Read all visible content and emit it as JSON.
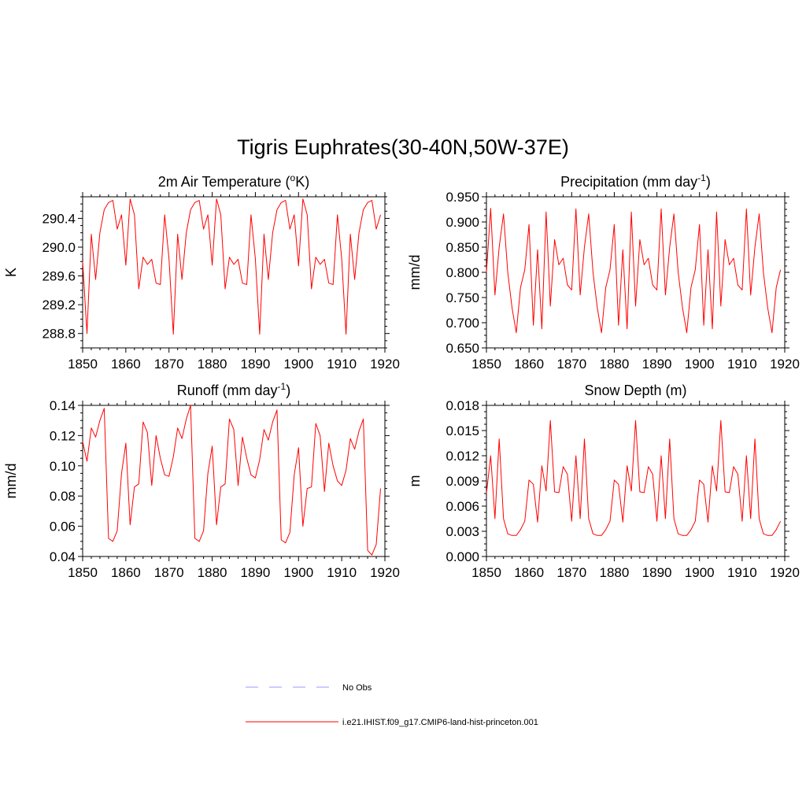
{
  "figure": {
    "title": "Tigris Euphrates(30-40N,50W-37E)"
  },
  "legend": {
    "items": [
      {
        "label": "No Obs",
        "color": "#9999ff",
        "style": "dashed"
      },
      {
        "label": "i.e21.IHIST.f09_g17.CMIP6-land-hist-princeton.001",
        "color": "#ff0000",
        "style": "solid"
      }
    ]
  },
  "chart_data": [
    {
      "id": "temp",
      "type": "line",
      "title": "2m Air Temperature (",
      "title_sup": "o",
      "title_after": "K)",
      "ylabel": "K",
      "xlim": [
        1850,
        1920
      ],
      "ylim": [
        288.6,
        290.7
      ],
      "xticks": [
        1850,
        1860,
        1870,
        1880,
        1890,
        1900,
        1910,
        1920
      ],
      "yticks": [
        288.8,
        289.2,
        289.6,
        290.0,
        290.4
      ],
      "ytick_labels": [
        "288.8",
        "289.2",
        "289.6",
        "290.0",
        "290.4"
      ],
      "series": [
        {
          "color": "#ff0000",
          "x": [
            1850,
            1851,
            1852,
            1853,
            1854,
            1855,
            1856,
            1857,
            1858,
            1859,
            1860,
            1861,
            1862,
            1863,
            1864,
            1865,
            1866,
            1867,
            1868,
            1869,
            1870,
            1871,
            1872,
            1873,
            1874,
            1875,
            1876,
            1877,
            1878,
            1879,
            1880,
            1881,
            1882,
            1883,
            1884,
            1885,
            1886,
            1887,
            1888,
            1889,
            1890,
            1891,
            1892,
            1893,
            1894,
            1895,
            1896,
            1897,
            1898,
            1899,
            1900,
            1901,
            1902,
            1903,
            1904,
            1905,
            1906,
            1907,
            1908,
            1909,
            1910,
            1911,
            1912,
            1913,
            1914,
            1915,
            1916,
            1917,
            1918,
            1919
          ],
          "values": [
            289.8,
            288.8,
            290.18,
            289.55,
            290.2,
            290.52,
            290.62,
            290.65,
            290.25,
            290.45,
            289.75,
            290.67,
            290.45,
            289.42,
            289.86,
            289.76,
            289.83,
            289.5,
            289.48,
            290.45,
            289.84,
            288.79,
            290.18,
            289.55,
            290.2,
            290.52,
            290.62,
            290.65,
            290.25,
            290.45,
            289.75,
            290.67,
            290.45,
            289.42,
            289.86,
            289.76,
            289.83,
            289.5,
            289.48,
            290.45,
            289.84,
            288.79,
            290.18,
            289.55,
            290.2,
            290.52,
            290.62,
            290.65,
            290.25,
            290.45,
            289.74,
            290.67,
            290.45,
            289.42,
            289.86,
            289.76,
            289.83,
            289.5,
            289.48,
            290.45,
            289.84,
            288.79,
            290.18,
            289.55,
            290.2,
            290.52,
            290.62,
            290.65,
            290.25,
            290.45
          ]
        }
      ]
    },
    {
      "id": "precip",
      "type": "line",
      "title": "Precipitation (mm day",
      "title_sup": "-1",
      "title_after": ")",
      "ylabel": "mm/d",
      "xlim": [
        1850,
        1920
      ],
      "ylim": [
        0.65,
        0.95
      ],
      "xticks": [
        1850,
        1860,
        1870,
        1880,
        1890,
        1900,
        1910,
        1920
      ],
      "yticks": [
        0.65,
        0.7,
        0.75,
        0.8,
        0.85,
        0.9,
        0.95
      ],
      "ytick_labels": [
        "0.650",
        "0.700",
        "0.750",
        "0.800",
        "0.850",
        "0.900",
        "0.950"
      ],
      "series": [
        {
          "color": "#ff0000",
          "x": [
            1850,
            1851,
            1852,
            1853,
            1854,
            1855,
            1856,
            1857,
            1858,
            1859,
            1860,
            1861,
            1862,
            1863,
            1864,
            1865,
            1866,
            1867,
            1868,
            1869,
            1870,
            1871,
            1872,
            1873,
            1874,
            1875,
            1876,
            1877,
            1878,
            1879,
            1880,
            1881,
            1882,
            1883,
            1884,
            1885,
            1886,
            1887,
            1888,
            1889,
            1890,
            1891,
            1892,
            1893,
            1894,
            1895,
            1896,
            1897,
            1898,
            1899,
            1900,
            1901,
            1902,
            1903,
            1904,
            1905,
            1906,
            1907,
            1908,
            1909,
            1910,
            1911,
            1912,
            1913,
            1914,
            1915,
            1916,
            1917,
            1918,
            1919
          ],
          "values": [
            0.8,
            0.927,
            0.755,
            0.85,
            0.916,
            0.8,
            0.73,
            0.68,
            0.77,
            0.805,
            0.895,
            0.695,
            0.845,
            0.688,
            0.92,
            0.733,
            0.865,
            0.815,
            0.828,
            0.775,
            0.765,
            0.926,
            0.755,
            0.85,
            0.916,
            0.8,
            0.73,
            0.68,
            0.77,
            0.805,
            0.895,
            0.695,
            0.845,
            0.688,
            0.92,
            0.733,
            0.865,
            0.815,
            0.828,
            0.775,
            0.765,
            0.926,
            0.755,
            0.85,
            0.916,
            0.8,
            0.73,
            0.68,
            0.77,
            0.805,
            0.895,
            0.695,
            0.845,
            0.688,
            0.92,
            0.733,
            0.865,
            0.815,
            0.828,
            0.775,
            0.765,
            0.926,
            0.755,
            0.85,
            0.916,
            0.8,
            0.73,
            0.68,
            0.77,
            0.805
          ]
        }
      ]
    },
    {
      "id": "runoff",
      "type": "line",
      "title": "Runoff (mm day",
      "title_sup": "-1",
      "title_after": ")",
      "ylabel": "mm/d",
      "xlim": [
        1850,
        1920
      ],
      "ylim": [
        0.04,
        0.14
      ],
      "xticks": [
        1850,
        1860,
        1870,
        1880,
        1890,
        1900,
        1910,
        1920
      ],
      "yticks": [
        0.04,
        0.06,
        0.08,
        0.1,
        0.12,
        0.14
      ],
      "ytick_labels": [
        "0.04",
        "0.06",
        "0.08",
        "0.10",
        "0.12",
        "0.14"
      ],
      "series": [
        {
          "color": "#ff0000",
          "x": [
            1850,
            1851,
            1852,
            1853,
            1854,
            1855,
            1856,
            1857,
            1858,
            1859,
            1860,
            1861,
            1862,
            1863,
            1864,
            1865,
            1866,
            1867,
            1868,
            1869,
            1870,
            1871,
            1872,
            1873,
            1874,
            1875,
            1876,
            1877,
            1878,
            1879,
            1880,
            1881,
            1882,
            1883,
            1884,
            1885,
            1886,
            1887,
            1888,
            1889,
            1890,
            1891,
            1892,
            1893,
            1894,
            1895,
            1896,
            1897,
            1898,
            1899,
            1900,
            1901,
            1902,
            1903,
            1904,
            1905,
            1906,
            1907,
            1908,
            1909,
            1910,
            1911,
            1912,
            1913,
            1914,
            1915,
            1916,
            1917,
            1918,
            1919
          ],
          "values": [
            0.116,
            0.103,
            0.125,
            0.119,
            0.13,
            0.138,
            0.052,
            0.05,
            0.057,
            0.095,
            0.115,
            0.061,
            0.086,
            0.088,
            0.129,
            0.122,
            0.087,
            0.12,
            0.105,
            0.094,
            0.093,
            0.106,
            0.125,
            0.118,
            0.131,
            0.14,
            0.052,
            0.05,
            0.057,
            0.095,
            0.113,
            0.061,
            0.086,
            0.088,
            0.131,
            0.124,
            0.087,
            0.119,
            0.105,
            0.094,
            0.092,
            0.104,
            0.124,
            0.117,
            0.129,
            0.137,
            0.051,
            0.049,
            0.056,
            0.094,
            0.112,
            0.06,
            0.085,
            0.086,
            0.128,
            0.12,
            0.083,
            0.115,
            0.1,
            0.09,
            0.087,
            0.097,
            0.118,
            0.111,
            0.123,
            0.131,
            0.044,
            0.041,
            0.048,
            0.085
          ]
        }
      ]
    },
    {
      "id": "snow",
      "type": "line",
      "title": "Snow Depth (m)",
      "title_sup": "",
      "title_after": "",
      "ylabel": "m",
      "xlim": [
        1850,
        1920
      ],
      "ylim": [
        0,
        0.018
      ],
      "xticks": [
        1850,
        1860,
        1870,
        1880,
        1890,
        1900,
        1910,
        1920
      ],
      "yticks": [
        0,
        0.003,
        0.006,
        0.009,
        0.012,
        0.015,
        0.018
      ],
      "ytick_labels": [
        "0.000",
        "0.003",
        "0.006",
        "0.009",
        "0.012",
        "0.015",
        "0.018"
      ],
      "series": [
        {
          "color": "#ff0000",
          "x": [
            1850,
            1851,
            1852,
            1853,
            1854,
            1855,
            1856,
            1857,
            1858,
            1859,
            1860,
            1861,
            1862,
            1863,
            1864,
            1865,
            1866,
            1867,
            1868,
            1869,
            1870,
            1871,
            1872,
            1873,
            1874,
            1875,
            1876,
            1877,
            1878,
            1879,
            1880,
            1881,
            1882,
            1883,
            1884,
            1885,
            1886,
            1887,
            1888,
            1889,
            1890,
            1891,
            1892,
            1893,
            1894,
            1895,
            1896,
            1897,
            1898,
            1899,
            1900,
            1901,
            1902,
            1903,
            1904,
            1905,
            1906,
            1907,
            1908,
            1909,
            1910,
            1911,
            1912,
            1913,
            1914,
            1915,
            1916,
            1917,
            1918,
            1919
          ],
          "values": [
            0.0075,
            0.012,
            0.0045,
            0.014,
            0.0045,
            0.0027,
            0.0025,
            0.0025,
            0.0032,
            0.0042,
            0.0091,
            0.0086,
            0.0041,
            0.0108,
            0.0078,
            0.0162,
            0.0077,
            0.0076,
            0.0107,
            0.0098,
            0.0042,
            0.012,
            0.0045,
            0.014,
            0.0045,
            0.0027,
            0.0025,
            0.0025,
            0.0032,
            0.0042,
            0.0091,
            0.0086,
            0.0041,
            0.0108,
            0.0078,
            0.0162,
            0.0077,
            0.0076,
            0.0107,
            0.0098,
            0.0042,
            0.012,
            0.0045,
            0.014,
            0.0045,
            0.0027,
            0.0025,
            0.0025,
            0.0032,
            0.0042,
            0.0091,
            0.0086,
            0.0041,
            0.0108,
            0.0078,
            0.0162,
            0.0077,
            0.0076,
            0.0107,
            0.0098,
            0.0042,
            0.012,
            0.0045,
            0.014,
            0.0045,
            0.0027,
            0.0025,
            0.0025,
            0.0032,
            0.0042
          ]
        }
      ]
    }
  ]
}
